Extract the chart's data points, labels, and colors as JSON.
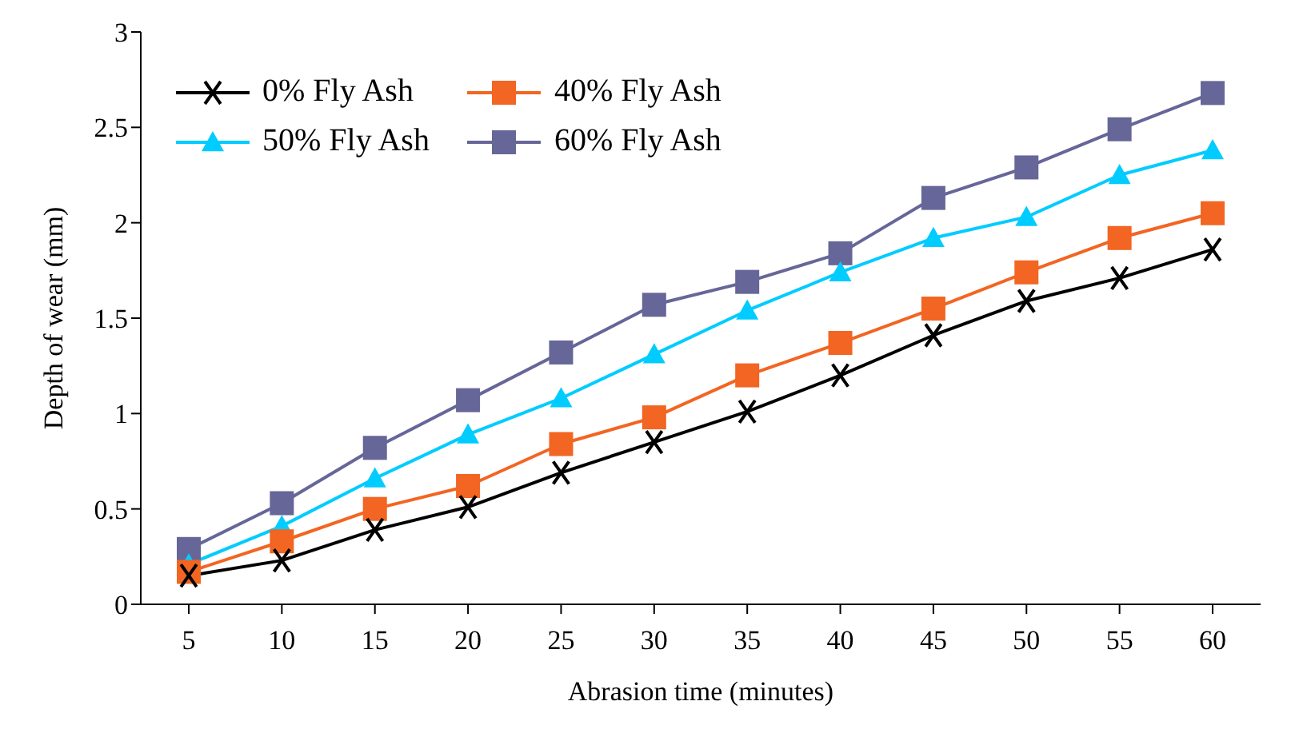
{
  "chart_data": {
    "type": "line",
    "xlabel": "Abrasion time (minutes)",
    "ylabel": "Depth of wear (mm)",
    "categories": [
      "5",
      "10",
      "15",
      "20",
      "25",
      "30",
      "35",
      "40",
      "45",
      "50",
      "55",
      "60"
    ],
    "ylim": [
      0,
      3
    ],
    "yticks": [
      0,
      0.5,
      1,
      1.5,
      2,
      2.5,
      3
    ],
    "grid": false,
    "legend": "top left",
    "line_style": "solid",
    "series": [
      {
        "name": "0% Fly Ash",
        "color": "#000000",
        "marker": "cross",
        "values": [
          0.15,
          0.23,
          0.39,
          0.51,
          0.69,
          0.85,
          1.01,
          1.2,
          1.41,
          1.59,
          1.71,
          1.86
        ]
      },
      {
        "name": "40% Fly Ash",
        "color": "#f26522",
        "marker": "square",
        "values": [
          0.17,
          0.33,
          0.5,
          0.62,
          0.84,
          0.98,
          1.2,
          1.37,
          1.55,
          1.74,
          1.92,
          2.05
        ]
      },
      {
        "name": "50% Fly Ash",
        "color": "#00ccff",
        "marker": "triangle",
        "values": [
          0.21,
          0.41,
          0.66,
          0.89,
          1.08,
          1.31,
          1.54,
          1.74,
          1.92,
          2.03,
          2.25,
          2.38
        ]
      },
      {
        "name": "60% Fly Ash",
        "color": "#666699",
        "marker": "square",
        "values": [
          0.29,
          0.53,
          0.82,
          1.07,
          1.32,
          1.57,
          1.69,
          1.84,
          2.13,
          2.29,
          2.49,
          2.68
        ]
      }
    ]
  }
}
